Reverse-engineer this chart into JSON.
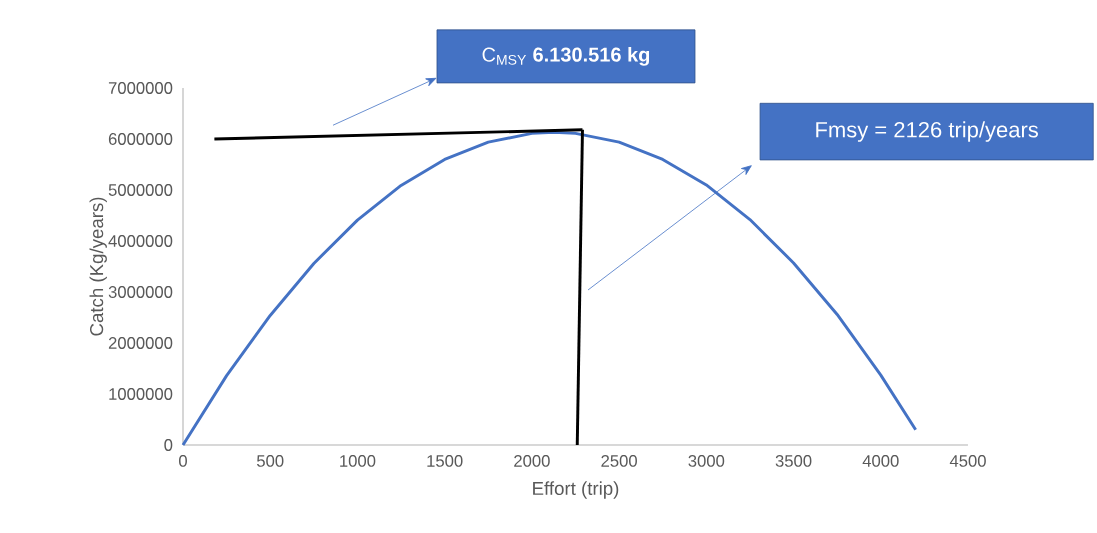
{
  "chart_data": {
    "type": "line",
    "xlabel": "Effort (trip)",
    "ylabel": "Catch (Kg/years)",
    "xlim": [
      0,
      4500
    ],
    "ylim": [
      0,
      7000000
    ],
    "xticks": [
      0,
      500,
      1000,
      1500,
      2000,
      2500,
      3000,
      3500,
      4000,
      4500
    ],
    "yticks": [
      0,
      1000000,
      2000000,
      3000000,
      4000000,
      5000000,
      6000000,
      7000000
    ],
    "grid": false,
    "series": [
      {
        "color": "#4472c4",
        "x": [
          0,
          250,
          500,
          750,
          1000,
          1250,
          1500,
          1750,
          2000,
          2126,
          2250,
          2500,
          2750,
          3000,
          3250,
          3500,
          3750,
          4000,
          4200
        ],
        "values": [
          0,
          1360000,
          2540000,
          3560000,
          4410000,
          5090000,
          5600000,
          5940000,
          6110000,
          6130000,
          6110000,
          5940000,
          5600000,
          5100000,
          4420000,
          3570000,
          2560000,
          1370000,
          300000
        ]
      },
      {
        "color": "#000000",
        "x": [
          180,
          2290
        ],
        "values": [
          6000000,
          6180000
        ]
      },
      {
        "color": "#000000",
        "x": [
          2290,
          2260
        ],
        "values": [
          6180000,
          0
        ]
      }
    ],
    "annotations": [
      "C$_{MSY}$ **6.130.516 kg**",
      "Fmsy = 2126 trip/years"
    ]
  }
}
